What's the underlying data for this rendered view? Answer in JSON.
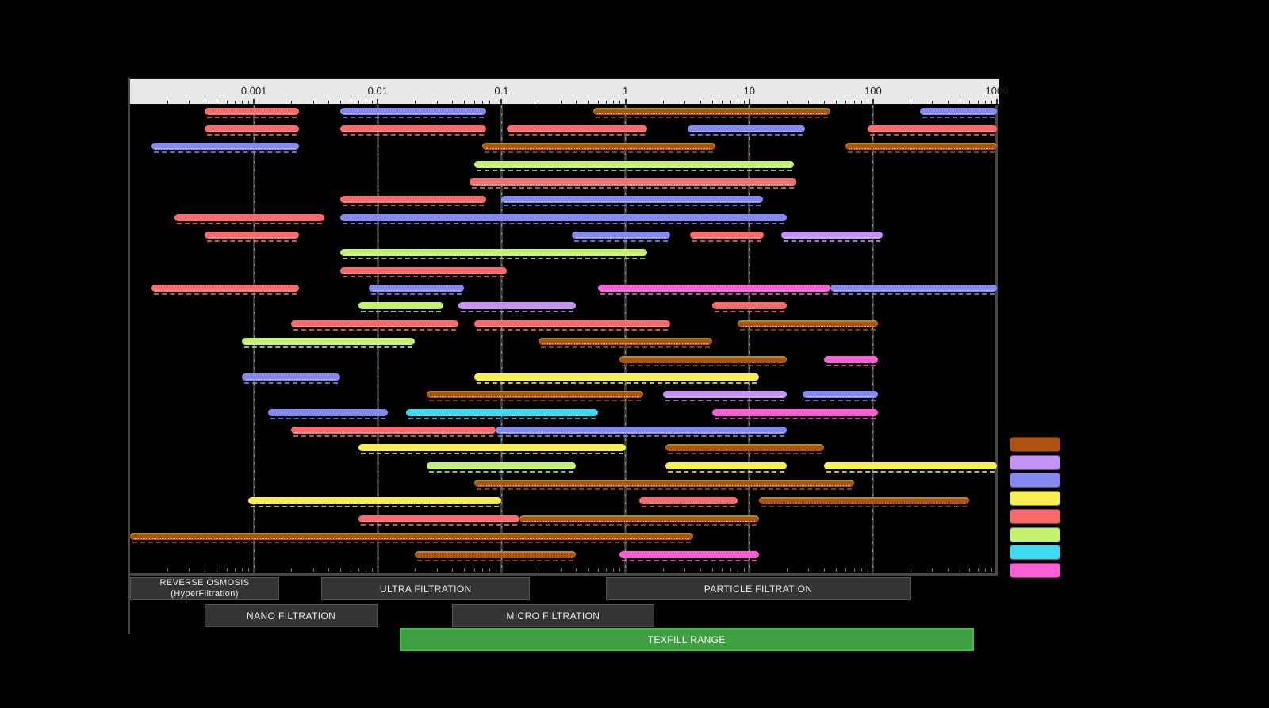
{
  "axis": {
    "tick_labels": [
      "0.001",
      "0.01",
      "0.1",
      "1",
      "10",
      "100",
      "1000"
    ],
    "scale": "log",
    "range": [
      0.0001,
      1000
    ]
  },
  "chart_data": {
    "type": "bar",
    "subtype": "horizontal-log-range-spectrum",
    "x_axis": {
      "scale": "log",
      "min": 0.0001,
      "max": 1000,
      "tick_labels": [
        "0.001",
        "0.01",
        "0.1",
        "1",
        "10",
        "100",
        "1000"
      ]
    },
    "palette": {
      "brown": "#b0520f",
      "purple": "#c492f5",
      "blue": "#8589f2",
      "yellow": "#f8ef4e",
      "red": "#f96b6b",
      "green": "#c4f070",
      "cyan": "#3fd9f2",
      "magenta": "#fa5fd5"
    },
    "rows": [
      [
        {
          "color": "red",
          "start": 0.0004,
          "end": 0.0023
        },
        {
          "color": "blue",
          "start": 0.005,
          "end": 0.075
        },
        {
          "color": "brown",
          "start": 0.55,
          "end": 45
        },
        {
          "color": "blue",
          "start": 240,
          "end": 1000
        }
      ],
      [
        {
          "color": "red",
          "start": 0.0004,
          "end": 0.0023
        },
        {
          "color": "red",
          "start": 0.005,
          "end": 0.075
        },
        {
          "color": "red",
          "start": 0.11,
          "end": 1.5
        },
        {
          "color": "blue",
          "start": 3.2,
          "end": 28
        },
        {
          "color": "red",
          "start": 90,
          "end": 1000
        }
      ],
      [
        {
          "color": "blue",
          "start": 0.00015,
          "end": 0.0023
        },
        {
          "color": "brown",
          "start": 0.07,
          "end": 5.3
        },
        {
          "color": "brown",
          "start": 60,
          "end": 1000
        }
      ],
      [
        {
          "color": "green",
          "start": 0.06,
          "end": 23
        }
      ],
      [
        {
          "color": "red",
          "start": 0.055,
          "end": 24
        }
      ],
      [
        {
          "color": "red",
          "start": 0.005,
          "end": 0.075
        },
        {
          "color": "blue",
          "start": 0.1,
          "end": 13
        }
      ],
      [
        {
          "color": "red",
          "start": 0.00023,
          "end": 0.0037
        },
        {
          "color": "blue",
          "start": 0.005,
          "end": 20
        }
      ],
      [
        {
          "color": "red",
          "start": 0.0004,
          "end": 0.0023
        },
        {
          "color": "blue",
          "start": 0.37,
          "end": 2.3
        },
        {
          "color": "red",
          "start": 3.3,
          "end": 13
        },
        {
          "color": "purple",
          "start": 18,
          "end": 120
        }
      ],
      [
        {
          "color": "green",
          "start": 0.005,
          "end": 1.5
        }
      ],
      [
        {
          "color": "red",
          "start": 0.005,
          "end": 0.11
        }
      ],
      [
        {
          "color": "red",
          "start": 0.00015,
          "end": 0.0023
        },
        {
          "color": "blue",
          "start": 0.0085,
          "end": 0.05
        },
        {
          "color": "magenta",
          "start": 0.6,
          "end": 45
        },
        {
          "color": "blue",
          "start": 45,
          "end": 1000
        }
      ],
      [
        {
          "color": "green",
          "start": 0.007,
          "end": 0.034
        },
        {
          "color": "purple",
          "start": 0.045,
          "end": 0.4
        },
        {
          "color": "red",
          "start": 5,
          "end": 20
        }
      ],
      [
        {
          "color": "red",
          "start": 0.002,
          "end": 0.045
        },
        {
          "color": "red",
          "start": 0.06,
          "end": 2.3
        },
        {
          "color": "brown",
          "start": 8,
          "end": 110
        }
      ],
      [
        {
          "color": "green",
          "start": 0.0008,
          "end": 0.02
        },
        {
          "color": "brown",
          "start": 0.2,
          "end": 5
        }
      ],
      [
        {
          "color": "brown",
          "start": 0.9,
          "end": 20
        },
        {
          "color": "magenta",
          "start": 40,
          "end": 110
        }
      ],
      [
        {
          "color": "blue",
          "start": 0.0008,
          "end": 0.005
        },
        {
          "color": "yellow",
          "start": 0.06,
          "end": 12
        }
      ],
      [
        {
          "color": "brown",
          "start": 0.025,
          "end": 1.4
        },
        {
          "color": "purple",
          "start": 2,
          "end": 20
        },
        {
          "color": "blue",
          "start": 27,
          "end": 110
        }
      ],
      [
        {
          "color": "blue",
          "start": 0.0013,
          "end": 0.012
        },
        {
          "color": "cyan",
          "start": 0.017,
          "end": 0.6
        },
        {
          "color": "magenta",
          "start": 5,
          "end": 110
        }
      ],
      [
        {
          "color": "red",
          "start": 0.002,
          "end": 0.09
        },
        {
          "color": "blue",
          "start": 0.09,
          "end": 20
        }
      ],
      [
        {
          "color": "yellow",
          "start": 0.007,
          "end": 1
        },
        {
          "color": "brown",
          "start": 2.1,
          "end": 40
        }
      ],
      [
        {
          "color": "green",
          "start": 0.025,
          "end": 0.4
        },
        {
          "color": "yellow",
          "start": 2.1,
          "end": 20
        },
        {
          "color": "yellow",
          "start": 40,
          "end": 1000
        }
      ],
      [
        {
          "color": "brown",
          "start": 0.06,
          "end": 70
        }
      ],
      [
        {
          "color": "yellow",
          "start": 0.0009,
          "end": 0.1
        },
        {
          "color": "red",
          "start": 1.3,
          "end": 8
        },
        {
          "color": "brown",
          "start": 12,
          "end": 600
        }
      ],
      [
        {
          "color": "red",
          "start": 0.007,
          "end": 0.14
        },
        {
          "color": "brown",
          "start": 0.14,
          "end": 12
        }
      ],
      [
        {
          "color": "brown",
          "start": 0.0001,
          "end": 3.5
        }
      ],
      [
        {
          "color": "brown",
          "start": 0.02,
          "end": 0.4
        },
        {
          "color": "magenta",
          "start": 0.9,
          "end": 12
        }
      ]
    ]
  },
  "legend": {
    "swatch_colors": [
      "brown",
      "purple",
      "blue",
      "yellow",
      "red",
      "green",
      "cyan",
      "magenta"
    ]
  },
  "processes": {
    "reverse_osmosis": {
      "label_line1": "REVERSE OSMOSIS",
      "label_line2": "(HyperFiltration)",
      "range": [
        0.0001,
        0.0016
      ],
      "band_row": 1
    },
    "ultra_filtration": {
      "label": "ULTRA FILTRATION",
      "range": [
        0.0035,
        0.17
      ],
      "band_row": 1
    },
    "particle_filtration": {
      "label": "PARTICLE FILTRATION",
      "range": [
        0.7,
        200
      ],
      "band_row": 1
    },
    "nano_filtration": {
      "label": "NANO FILTRATION",
      "range": [
        0.0004,
        0.01
      ],
      "band_row": 2
    },
    "micro_filtration": {
      "label": "MICRO FILTRATION",
      "range": [
        0.04,
        1.7
      ],
      "band_row": 2
    },
    "texfill_range": {
      "label": "TEXFILL RANGE",
      "range": [
        0.015,
        650
      ],
      "band_row": 3,
      "fill": "#3f9f42",
      "border": "#3cc03f"
    }
  }
}
